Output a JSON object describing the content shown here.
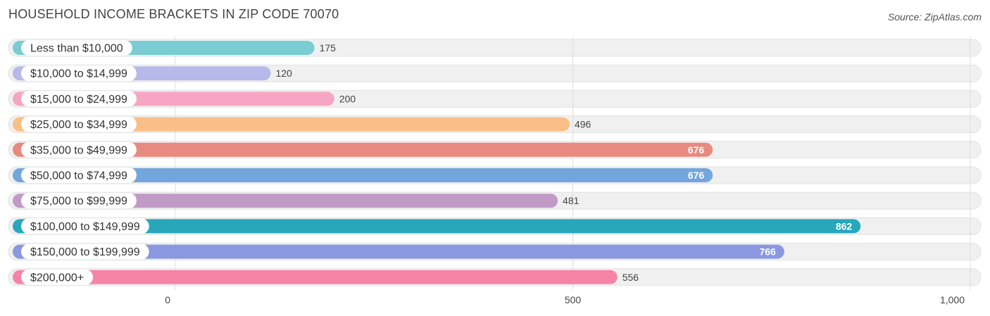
{
  "title": "HOUSEHOLD INCOME BRACKETS IN ZIP CODE 70070",
  "source": "Source: ZipAtlas.com",
  "chart_data": {
    "type": "bar",
    "orientation": "horizontal",
    "categories": [
      "Less than $10,000",
      "$10,000 to $14,999",
      "$15,000 to $24,999",
      "$25,000 to $34,999",
      "$35,000 to $49,999",
      "$50,000 to $74,999",
      "$75,000 to $99,999",
      "$100,000 to $149,999",
      "$150,000 to $199,999",
      "$200,000+"
    ],
    "values": [
      175,
      120,
      200,
      496,
      676,
      676,
      481,
      862,
      766,
      556
    ],
    "value_labels": [
      "175",
      "120",
      "200",
      "496",
      "676",
      "676",
      "481",
      "862",
      "766",
      "556"
    ],
    "colors": [
      "#79cdd3",
      "#b7b9ea",
      "#f6a6c2",
      "#f9bf86",
      "#e88a80",
      "#72a6dc",
      "#c19ac6",
      "#28a7bb",
      "#8998e0",
      "#f684a7"
    ],
    "label_inside": [
      false,
      false,
      false,
      false,
      true,
      true,
      false,
      true,
      true,
      false
    ],
    "xticks": [
      0,
      500,
      1000
    ],
    "xtick_labels": [
      "0",
      "500",
      "1,000"
    ],
    "xlim": [
      0,
      1000
    ],
    "grid": true
  }
}
